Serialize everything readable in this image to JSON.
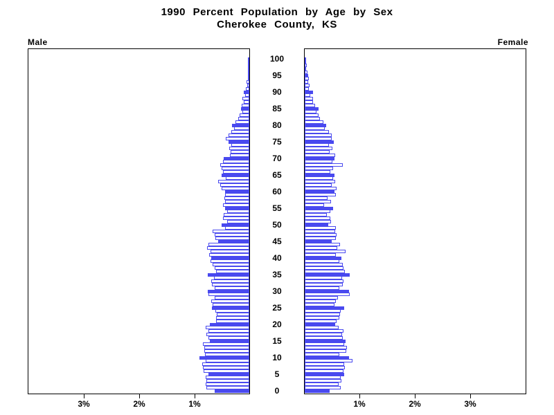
{
  "title": {
    "line1": "1990 Percent Population by Age by Sex",
    "line2": "Cherokee County, KS"
  },
  "side_labels": {
    "left": "Male",
    "right": "Female"
  },
  "colors": {
    "bar_fill": "#4949ef",
    "bar_outline": "#4949ef",
    "frame": "#000000",
    "text": "#000000"
  },
  "axis": {
    "age_tick_labels": [
      100,
      95,
      90,
      85,
      80,
      75,
      70,
      65,
      60,
      55,
      50,
      45,
      40,
      35,
      30,
      25,
      20,
      15,
      10,
      5,
      0
    ],
    "male_pct_ticks": [
      {
        "label": "3%",
        "value": 3
      },
      {
        "label": "2%",
        "value": 2
      },
      {
        "label": "1%",
        "value": 1
      }
    ],
    "female_pct_ticks": [
      {
        "label": "1%",
        "value": 1
      },
      {
        "label": "2%",
        "value": 2
      },
      {
        "label": "3%",
        "value": 3
      }
    ],
    "pct_max": 4
  },
  "chart_data": {
    "type": "bar",
    "subtype": "population-pyramid",
    "title": "1990 Percent Population by Age by Sex — Cherokee County, KS",
    "x_unit": "percent of population",
    "xlim_each_side": [
      0,
      4
    ],
    "age_min": 0,
    "age_max": 100,
    "highlight_every_5_years": true,
    "ages": [
      0,
      1,
      2,
      3,
      4,
      5,
      6,
      7,
      8,
      9,
      10,
      11,
      12,
      13,
      14,
      15,
      16,
      17,
      18,
      19,
      20,
      21,
      22,
      23,
      24,
      25,
      26,
      27,
      28,
      29,
      30,
      31,
      32,
      33,
      34,
      35,
      36,
      37,
      38,
      39,
      40,
      41,
      42,
      43,
      44,
      45,
      46,
      47,
      48,
      49,
      50,
      51,
      52,
      53,
      54,
      55,
      56,
      57,
      58,
      59,
      60,
      61,
      62,
      63,
      64,
      65,
      66,
      67,
      68,
      69,
      70,
      71,
      72,
      73,
      74,
      75,
      76,
      77,
      78,
      79,
      80,
      81,
      82,
      83,
      84,
      85,
      86,
      87,
      88,
      89,
      90,
      91,
      92,
      93,
      94,
      95,
      96,
      97,
      98,
      99,
      100
    ],
    "series": [
      {
        "name": "Male",
        "values": [
          0.63,
          0.78,
          0.79,
          0.77,
          0.79,
          0.74,
          0.82,
          0.84,
          0.85,
          0.79,
          0.9,
          0.8,
          0.81,
          0.81,
          0.84,
          0.71,
          0.74,
          0.78,
          0.74,
          0.79,
          0.71,
          0.6,
          0.6,
          0.59,
          0.61,
          0.67,
          0.66,
          0.69,
          0.63,
          0.74,
          0.75,
          0.63,
          0.68,
          0.69,
          0.64,
          0.75,
          0.6,
          0.63,
          0.66,
          0.7,
          0.69,
          0.73,
          0.7,
          0.76,
          0.74,
          0.56,
          0.61,
          0.63,
          0.66,
          0.44,
          0.5,
          0.4,
          0.48,
          0.46,
          0.4,
          0.44,
          0.48,
          0.44,
          0.45,
          0.44,
          0.44,
          0.5,
          0.52,
          0.56,
          0.42,
          0.5,
          0.47,
          0.5,
          0.53,
          0.48,
          0.46,
          0.35,
          0.34,
          0.36,
          0.33,
          0.38,
          0.42,
          0.38,
          0.33,
          0.28,
          0.31,
          0.25,
          0.2,
          0.17,
          0.12,
          0.15,
          0.14,
          0.1,
          0.12,
          0.08,
          0.1,
          0.06,
          0.04,
          0.05,
          0.03,
          0.03,
          0.02,
          0.01,
          0.02,
          0.0,
          0.01
        ]
      },
      {
        "name": "Female",
        "values": [
          0.45,
          0.65,
          0.61,
          0.66,
          0.65,
          0.71,
          0.7,
          0.72,
          0.71,
          0.86,
          0.8,
          0.62,
          0.75,
          0.76,
          0.71,
          0.74,
          0.69,
          0.67,
          0.7,
          0.61,
          0.55,
          0.57,
          0.62,
          0.64,
          0.65,
          0.71,
          0.54,
          0.56,
          0.6,
          0.81,
          0.8,
          0.62,
          0.69,
          0.7,
          0.67,
          0.81,
          0.72,
          0.7,
          0.69,
          0.62,
          0.66,
          0.56,
          0.74,
          0.59,
          0.64,
          0.49,
          0.56,
          0.57,
          0.55,
          0.56,
          0.42,
          0.47,
          0.46,
          0.4,
          0.46,
          0.51,
          0.35,
          0.47,
          0.41,
          0.56,
          0.54,
          0.57,
          0.49,
          0.55,
          0.51,
          0.54,
          0.46,
          0.51,
          0.69,
          0.5,
          0.54,
          0.55,
          0.45,
          0.5,
          0.44,
          0.52,
          0.49,
          0.49,
          0.44,
          0.36,
          0.39,
          0.34,
          0.28,
          0.25,
          0.21,
          0.25,
          0.19,
          0.15,
          0.15,
          0.1,
          0.15,
          0.08,
          0.09,
          0.06,
          0.07,
          0.06,
          0.05,
          0.02,
          0.04,
          0.0,
          0.02
        ]
      }
    ]
  }
}
